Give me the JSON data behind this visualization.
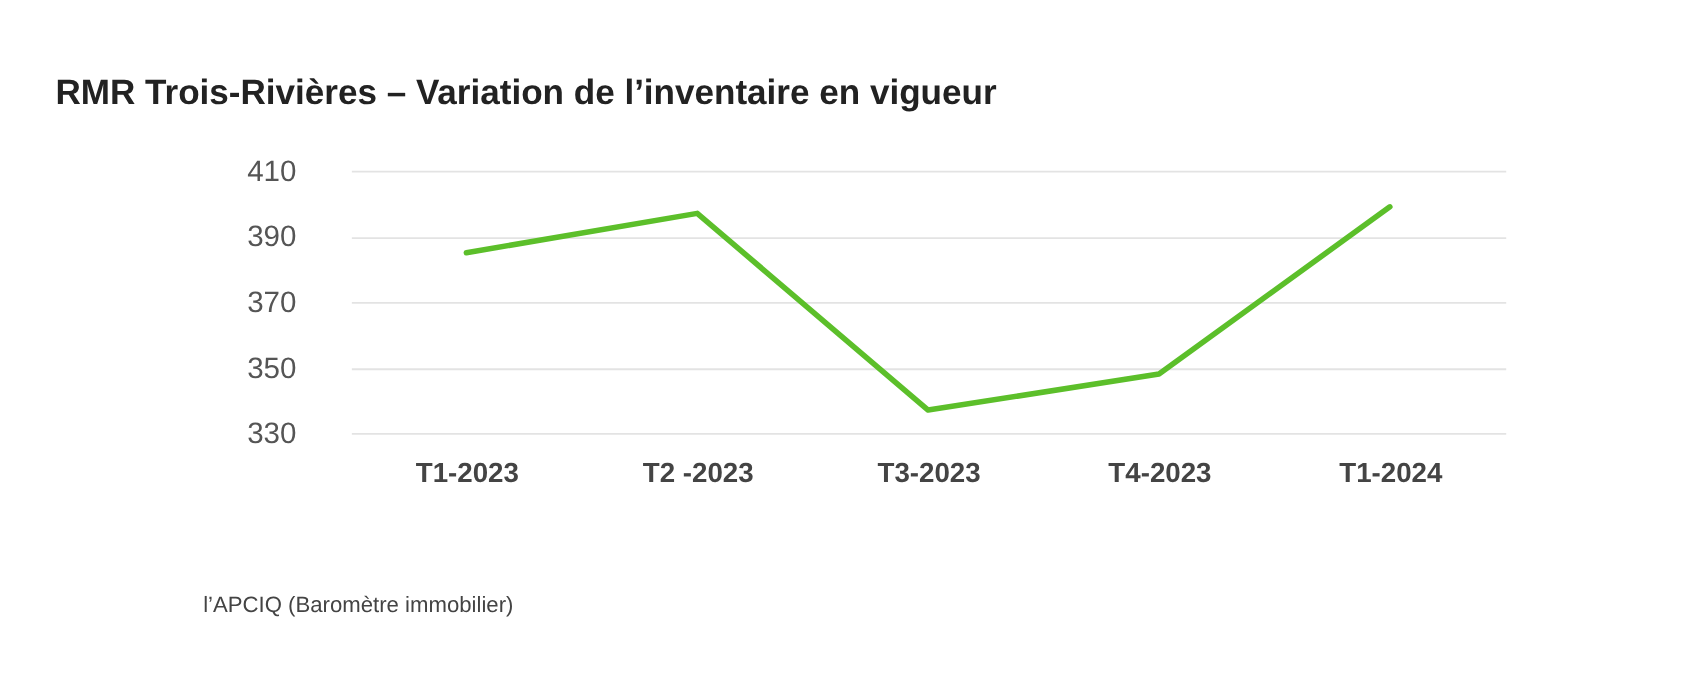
{
  "chart_data": {
    "type": "line",
    "title": "RMR Trois-Rivières – Variation de l’inventaire en vigueur",
    "categories": [
      "T1-2023",
      "T2 -2023",
      "T3-2023",
      "T4-2023",
      "T1-2024"
    ],
    "series": [
      {
        "color": "#5cbf2a",
        "values": [
          385,
          397,
          337,
          348,
          399
        ]
      }
    ],
    "ylim": [
      330,
      410
    ],
    "yticks": [
      330,
      350,
      370,
      390,
      410
    ],
    "grid": "y",
    "legend": false,
    "marker": "none",
    "line_style": "solid",
    "annotations": [
      "l’APCIQ (Baromètre immobilier)"
    ]
  }
}
